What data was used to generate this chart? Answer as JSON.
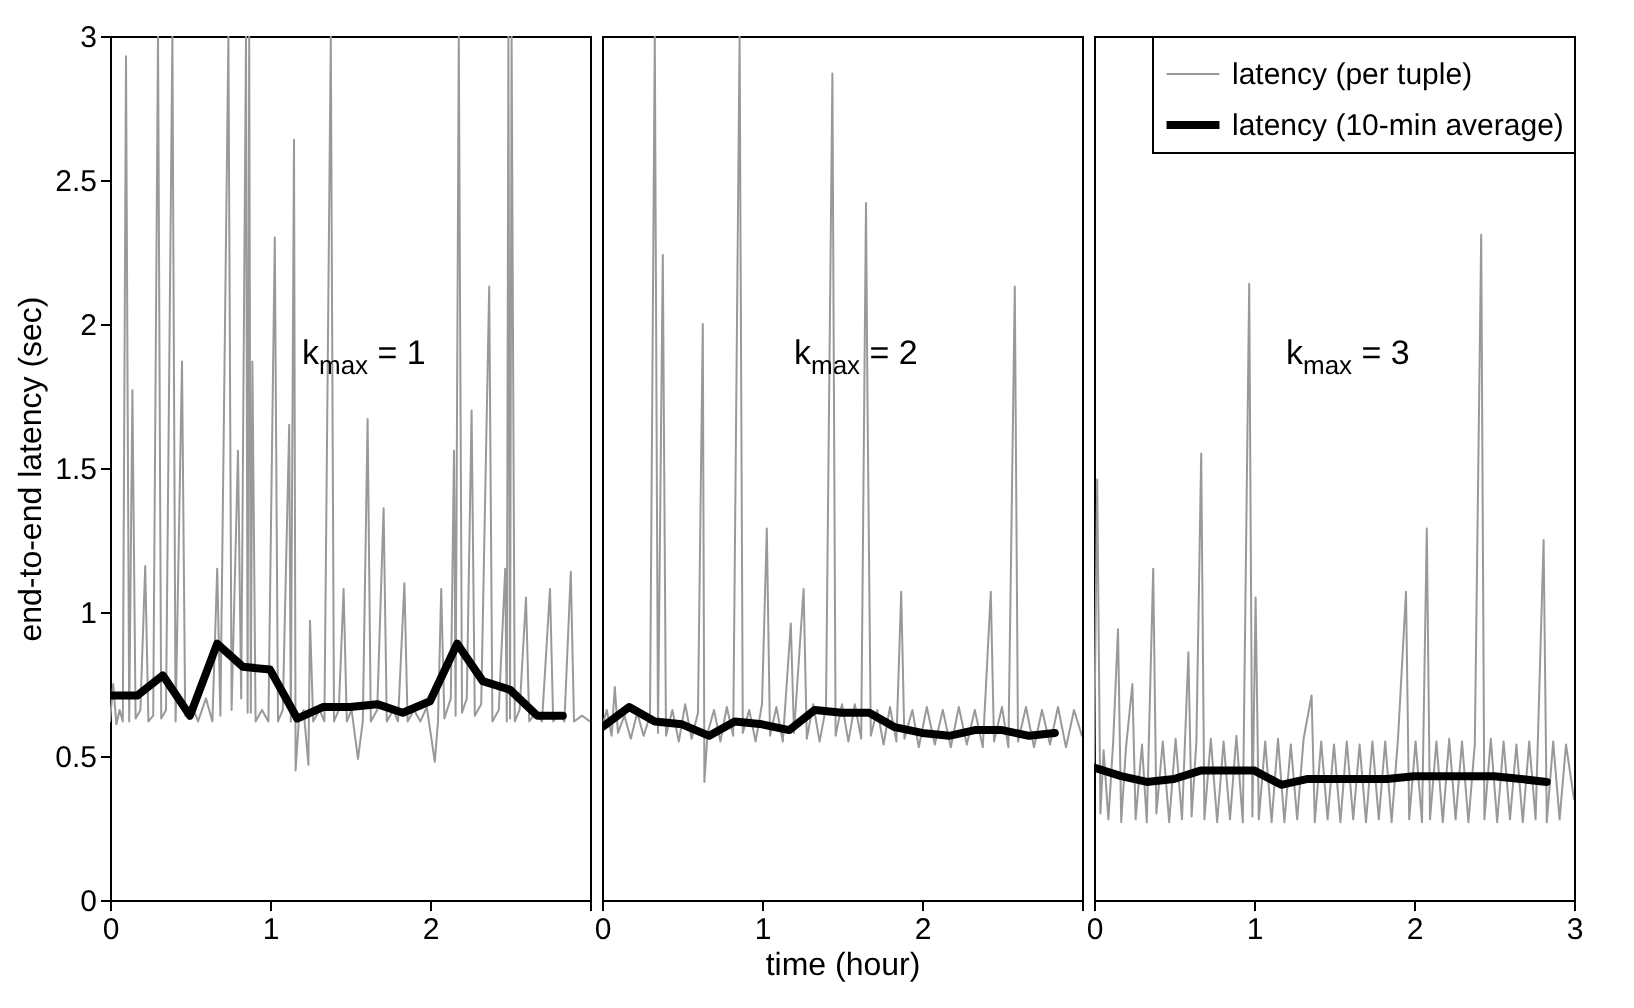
{
  "chart_data": [
    {
      "type": "line",
      "ylabel": "end-to-end latency (sec)",
      "xlim": [
        0,
        3
      ],
      "xticks": [
        0,
        1,
        2,
        {
          "value": 3,
          "label": null
        }
      ],
      "ylim": [
        0,
        3
      ],
      "yticks": [
        0,
        0.5,
        1,
        1.5,
        2,
        2.5,
        3
      ],
      "grid": false,
      "legend": false,
      "annotations": [
        "k$_{max}$ = 1"
      ],
      "series": [
        {
          "color": "#999999",
          "x": [
            0,
            0.02,
            0.04,
            0.06,
            0.08,
            0.1,
            0.12,
            0.14,
            0.16,
            0.19,
            0.22,
            0.24,
            0.27,
            0.3,
            0.32,
            0.35,
            0.39,
            0.41,
            0.45,
            0.47,
            0.51,
            0.55,
            0.6,
            0.64,
            0.67,
            0.69,
            0.74,
            0.76,
            0.8,
            0.82,
            0.85,
            0.86,
            0.87,
            0.88,
            0.89,
            0.91,
            0.95,
            0.99,
            1.03,
            1.05,
            1.08,
            1.12,
            1.13,
            1.15,
            1.16,
            1.18,
            1.21,
            1.24,
            1.25,
            1.27,
            1.31,
            1.34,
            1.38,
            1.4,
            1.43,
            1.46,
            1.48,
            1.51,
            1.55,
            1.58,
            1.61,
            1.63,
            1.67,
            1.71,
            1.73,
            1.77,
            1.8,
            1.84,
            1.86,
            1.9,
            1.94,
            1.98,
            2.03,
            2.05,
            2.07,
            2.09,
            2.13,
            2.15,
            2.16,
            2.18,
            2.2,
            2.23,
            2.26,
            2.28,
            2.32,
            2.37,
            2.39,
            2.43,
            2.47,
            2.48,
            2.49,
            2.5,
            2.51,
            2.53,
            2.56,
            2.6,
            2.62,
            2.66,
            2.7,
            2.75,
            2.77,
            2.81,
            2.84,
            2.88,
            2.9,
            2.95,
            3.0
          ],
          "values": [
            0.62,
            0.75,
            0.61,
            0.66,
            0.62,
            2.93,
            0.62,
            1.77,
            0.63,
            0.66,
            1.16,
            0.62,
            0.64,
            3,
            0.63,
            0.66,
            3,
            0.62,
            1.87,
            0.64,
            0.68,
            0.62,
            0.7,
            0.62,
            1.15,
            0.64,
            3,
            0.66,
            1.56,
            0.7,
            3,
            0.65,
            3,
            0.65,
            1.87,
            0.62,
            0.66,
            0.62,
            2.3,
            0.62,
            0.66,
            1.65,
            0.62,
            2.64,
            0.45,
            0.62,
            0.66,
            0.47,
            0.97,
            0.62,
            0.66,
            0.62,
            3,
            0.62,
            0.66,
            1.08,
            0.62,
            0.66,
            0.49,
            0.62,
            1.67,
            0.62,
            0.66,
            1.36,
            0.62,
            0.66,
            0.62,
            1.1,
            0.62,
            0.66,
            0.62,
            0.67,
            0.48,
            0.62,
            1.08,
            0.63,
            0.7,
            1.56,
            0.64,
            3,
            0.65,
            0.7,
            1.7,
            0.64,
            0.68,
            2.13,
            0.62,
            0.66,
            1.15,
            0.62,
            3,
            0.63,
            3,
            0.62,
            0.66,
            1.05,
            0.62,
            0.65,
            0.62,
            1.08,
            0.62,
            0.65,
            0.62,
            1.14,
            0.62,
            0.64,
            0.62
          ]
        },
        {
          "color": "#000000",
          "x": [
            0,
            0.17,
            0.33,
            0.5,
            0.67,
            0.83,
            1,
            1.17,
            1.33,
            1.5,
            1.67,
            1.83,
            2,
            2.17,
            2.33,
            2.5,
            2.67,
            2.83
          ],
          "values": [
            0.71,
            0.71,
            0.78,
            0.64,
            0.89,
            0.81,
            0.8,
            0.63,
            0.67,
            0.67,
            0.68,
            0.65,
            0.69,
            0.89,
            0.76,
            0.73,
            0.64,
            0.64
          ]
        }
      ]
    },
    {
      "type": "line",
      "xlabel": "time (hour)",
      "xlim": [
        0,
        3
      ],
      "xticks": [
        0,
        1,
        2,
        {
          "value": 3,
          "label": null
        }
      ],
      "ylim": [
        0,
        3
      ],
      "yticks": [
        0,
        0.5,
        1,
        1.5,
        2,
        2.5,
        3
      ],
      "tick_labels": "x",
      "grid": false,
      "legend": false,
      "annotations": [
        "k$_{max}$ = 2"
      ],
      "series": [
        {
          "color": "#999999",
          "x": [
            0,
            0.03,
            0.06,
            0.08,
            0.1,
            0.14,
            0.18,
            0.22,
            0.26,
            0.3,
            0.33,
            0.35,
            0.38,
            0.4,
            0.44,
            0.48,
            0.52,
            0.56,
            0.6,
            0.63,
            0.64,
            0.66,
            0.7,
            0.74,
            0.78,
            0.82,
            0.86,
            0.88,
            0.92,
            0.96,
            1.0,
            1.03,
            1.05,
            1.09,
            1.13,
            1.18,
            1.2,
            1.26,
            1.28,
            1.32,
            1.36,
            1.4,
            1.44,
            1.46,
            1.5,
            1.54,
            1.58,
            1.62,
            1.65,
            1.66,
            1.68,
            1.72,
            1.76,
            1.8,
            1.84,
            1.87,
            1.89,
            1.94,
            1.98,
            2.03,
            2.08,
            2.13,
            2.18,
            2.23,
            2.28,
            2.33,
            2.38,
            2.43,
            2.45,
            2.5,
            2.54,
            2.58,
            2.6,
            2.65,
            2.7,
            2.75,
            2.8,
            2.85,
            2.9,
            2.95,
            3.0
          ],
          "values": [
            0.6,
            0.66,
            0.57,
            0.74,
            0.58,
            0.64,
            0.56,
            0.65,
            0.57,
            0.64,
            3,
            0.58,
            2.24,
            0.57,
            0.66,
            0.55,
            0.68,
            0.56,
            0.65,
            2.0,
            0.41,
            0.58,
            0.66,
            0.55,
            0.67,
            0.57,
            3,
            0.58,
            0.66,
            0.55,
            0.68,
            1.29,
            0.57,
            0.67,
            0.55,
            0.96,
            0.58,
            1.08,
            0.56,
            0.68,
            0.55,
            0.67,
            2.87,
            0.57,
            0.68,
            0.55,
            0.68,
            0.56,
            2.42,
            1.69,
            0.57,
            0.66,
            0.54,
            0.67,
            0.55,
            1.07,
            0.56,
            0.66,
            0.53,
            0.67,
            0.54,
            0.66,
            0.53,
            0.67,
            0.54,
            0.66,
            0.53,
            1.07,
            0.55,
            0.67,
            0.53,
            2.13,
            0.55,
            0.67,
            0.53,
            0.66,
            0.54,
            0.67,
            0.53,
            0.66,
            0.57
          ]
        },
        {
          "color": "#000000",
          "x": [
            0,
            0.17,
            0.33,
            0.5,
            0.67,
            0.83,
            1,
            1.17,
            1.33,
            1.5,
            1.67,
            1.83,
            2,
            2.17,
            2.33,
            2.5,
            2.67,
            2.83
          ],
          "values": [
            0.6,
            0.67,
            0.62,
            0.61,
            0.57,
            0.62,
            0.61,
            0.59,
            0.66,
            0.65,
            0.65,
            0.6,
            0.58,
            0.57,
            0.59,
            0.59,
            0.57,
            0.58
          ]
        }
      ]
    },
    {
      "type": "line",
      "xlim": [
        0,
        3
      ],
      "xticks": [
        0,
        1,
        2,
        3
      ],
      "ylim": [
        0,
        3
      ],
      "yticks": [
        0,
        0.5,
        1,
        1.5,
        2,
        2.5,
        3
      ],
      "tick_labels": "x",
      "grid": false,
      "legend": "top right",
      "annotations": [
        "k$_{max}$ = 3"
      ],
      "series": [
        {
          "name": "latency (per tuple)",
          "color": "#999999",
          "x": [
            0,
            0.02,
            0.04,
            0.06,
            0.09,
            0.12,
            0.15,
            0.17,
            0.2,
            0.24,
            0.26,
            0.3,
            0.33,
            0.37,
            0.39,
            0.43,
            0.47,
            0.51,
            0.55,
            0.59,
            0.61,
            0.64,
            0.67,
            0.69,
            0.73,
            0.77,
            0.81,
            0.85,
            0.89,
            0.93,
            0.97,
            0.99,
            1.01,
            1.03,
            1.07,
            1.11,
            1.15,
            1.19,
            1.23,
            1.27,
            1.31,
            1.36,
            1.38,
            1.42,
            1.46,
            1.5,
            1.54,
            1.58,
            1.62,
            1.66,
            1.7,
            1.74,
            1.78,
            1.82,
            1.86,
            1.9,
            1.95,
            1.97,
            2.01,
            2.05,
            2.08,
            2.1,
            2.14,
            2.18,
            2.22,
            2.26,
            2.3,
            2.34,
            2.38,
            2.42,
            2.44,
            2.48,
            2.52,
            2.56,
            2.6,
            2.64,
            2.68,
            2.72,
            2.76,
            2.81,
            2.83,
            2.87,
            2.91,
            2.95,
            3.0
          ],
          "values": [
            0.45,
            1.46,
            0.3,
            0.52,
            0.28,
            0.55,
            0.94,
            0.27,
            0.53,
            0.75,
            0.28,
            0.54,
            0.27,
            1.15,
            0.3,
            0.55,
            0.27,
            0.56,
            0.28,
            0.86,
            0.29,
            0.55,
            1.55,
            0.28,
            0.56,
            0.27,
            0.55,
            0.28,
            0.57,
            0.27,
            2.14,
            0.29,
            1.05,
            0.28,
            0.55,
            0.27,
            0.56,
            0.27,
            0.54,
            0.28,
            0.56,
            0.71,
            0.27,
            0.55,
            0.28,
            0.54,
            0.27,
            0.55,
            0.28,
            0.54,
            0.27,
            0.55,
            0.28,
            0.55,
            0.27,
            0.56,
            1.07,
            0.28,
            0.55,
            0.27,
            1.29,
            0.28,
            0.55,
            0.27,
            0.56,
            0.28,
            0.55,
            0.27,
            0.54,
            2.31,
            0.28,
            0.56,
            0.27,
            0.55,
            0.28,
            0.54,
            0.27,
            0.55,
            0.28,
            1.25,
            0.27,
            0.55,
            0.28,
            0.54,
            0.35
          ]
        },
        {
          "name": "latency (10-min average)",
          "color": "#000000",
          "x": [
            0,
            0.17,
            0.33,
            0.5,
            0.67,
            0.83,
            1,
            1.17,
            1.33,
            1.5,
            1.67,
            1.83,
            2,
            2.17,
            2.33,
            2.5,
            2.67,
            2.83
          ],
          "values": [
            0.46,
            0.43,
            0.41,
            0.42,
            0.45,
            0.45,
            0.45,
            0.4,
            0.42,
            0.42,
            0.42,
            0.42,
            0.43,
            0.43,
            0.43,
            0.43,
            0.42,
            0.41
          ]
        }
      ]
    }
  ]
}
